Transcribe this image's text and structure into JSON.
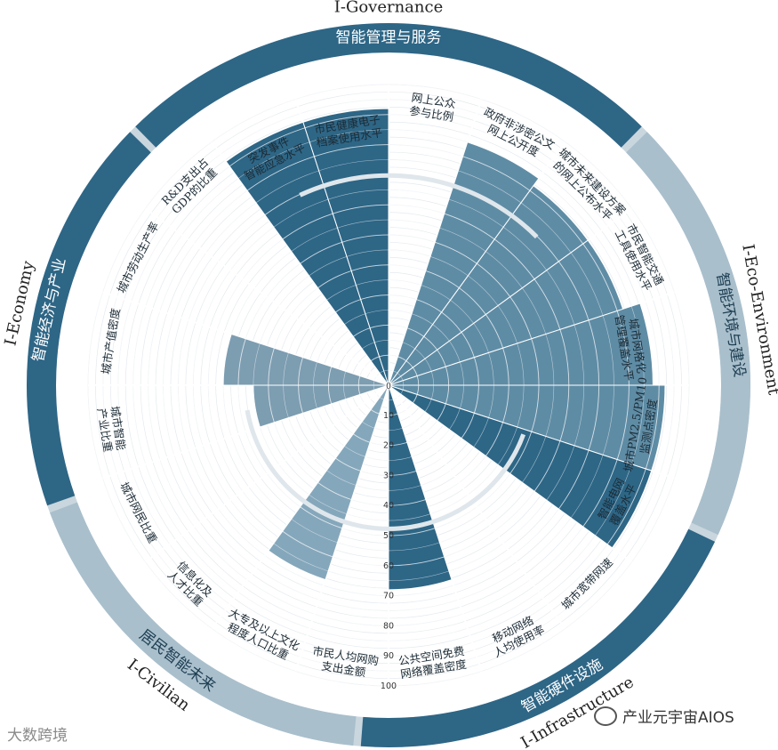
{
  "chart_data": {
    "type": "polar-bar",
    "center_label": "0",
    "rlim": [
      0,
      100
    ],
    "r_ticks": [
      10,
      20,
      30,
      40,
      50,
      60,
      70,
      80,
      90,
      100
    ],
    "colors": {
      "governance": "#2e6686",
      "eco": "#5f8ca5",
      "infra": "#2e6686",
      "civilian": "#85a7bb",
      "economy": "#7d9db1",
      "ring_dark": "#2e6686",
      "ring_light": "#a9bfcc"
    },
    "dimensions": [
      {
        "code": "I-Governance",
        "name": "智能管理与服务",
        "color_key": "governance"
      },
      {
        "code": "I-Eco-Environment",
        "name": "智能环境与建设",
        "color_key": "eco"
      },
      {
        "code": "I-Infrastructure",
        "name": "智能硬件设施",
        "color_key": "infra"
      },
      {
        "code": "I-Civilian",
        "name": "居民智能未来",
        "color_key": "civilian"
      },
      {
        "code": "I-Economy",
        "name": "智能经济与产业",
        "color_key": "economy"
      }
    ],
    "categories": [
      {
        "label": [
          "网上公众",
          "参与比例"
        ],
        "value": 0,
        "dim": 0
      },
      {
        "label": [
          "政府非涉密公文",
          "网上公开度"
        ],
        "value": 85,
        "dim": 1
      },
      {
        "label": [
          "城市未来建设方案",
          "的网上公布水平"
        ],
        "value": 82,
        "dim": 1
      },
      {
        "label": [
          "市民智能交通",
          "工具使用水平"
        ],
        "value": 82,
        "dim": 1
      },
      {
        "label": [
          "城市网格化",
          "管理覆盖水平"
        ],
        "value": 88,
        "dim": 1
      },
      {
        "label": [
          "城市PM2.5/PM10",
          "监测点密度"
        ],
        "value": 92,
        "dim": 1
      },
      {
        "label": [
          "智能电网",
          "覆盖水平"
        ],
        "value": 92,
        "dim": 2
      },
      {
        "label": [
          "城市宽带网速"
        ],
        "value": 0,
        "dim": 2
      },
      {
        "label": [
          "移动网络",
          "人均使用率"
        ],
        "value": 0,
        "dim": 2
      },
      {
        "label": [
          "公共空间免费",
          "网络覆盖密度"
        ],
        "value": 68,
        "dim": 2
      },
      {
        "label": [
          "市民人均网购",
          "支出金额"
        ],
        "value": 0,
        "dim": 3
      },
      {
        "label": [
          "大专及以上文化",
          "程度人口比重"
        ],
        "value": 68,
        "dim": 3
      },
      {
        "label": [
          "信息化及",
          "人才比重"
        ],
        "value": 0,
        "dim": 3
      },
      {
        "label": [
          "城市网民比重"
        ],
        "value": 0,
        "dim": 3
      },
      {
        "label": [
          "城市智能",
          "产业比重"
        ],
        "value": 45,
        "dim": 4
      },
      {
        "label": [
          "城市产值密度"
        ],
        "value": 55,
        "dim": 4
      },
      {
        "label": [
          "城市劳动生产率"
        ],
        "value": 0,
        "dim": 4
      },
      {
        "label": [
          "R&D支出占",
          "GDP的比重"
        ],
        "value": 0,
        "dim": 4
      },
      {
        "label": [
          "突发事件",
          "智能应急水平"
        ],
        "value": 92,
        "dim": 0
      },
      {
        "label": [
          "市民健康电子",
          "档案使用水平"
        ],
        "value": 92,
        "dim": 0
      }
    ]
  },
  "watermarks": {
    "left": "大数跨境",
    "right": "产业元宇宙AIOS"
  }
}
